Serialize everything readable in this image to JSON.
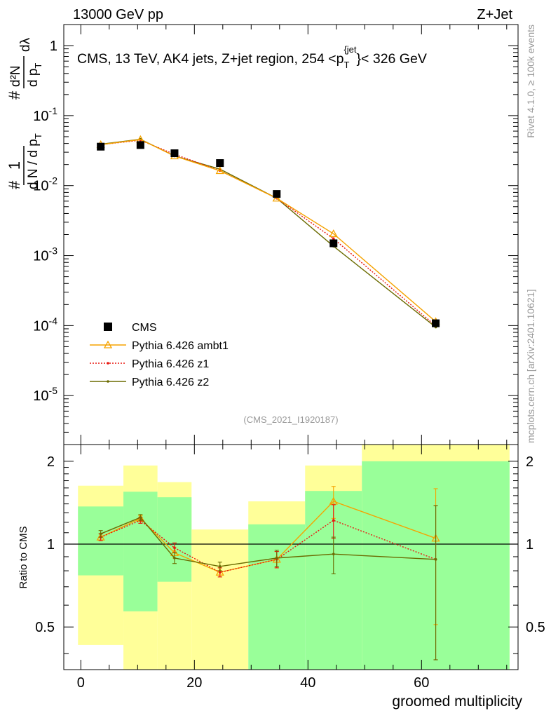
{
  "header": {
    "energy_label": "13000 GeV pp",
    "process_label": "Z+Jet"
  },
  "side_labels": {
    "rivet": "Rivet 4.1.0, ≥ 100k events",
    "mcplots": "mcplots.cern.ch [arXiv:2401.10621]"
  },
  "chart_data": {
    "type": "line",
    "title": "CMS, 13 TeV, AK4 jets, Z+jet region, 254 <p_T^{jet}< 326 GeV",
    "title_parts": {
      "main": "CMS, 13 TeV, AK4 jets, Z+jet region, 254 <p",
      "sub": "T",
      "sup": "{jet",
      "sup_close": "}",
      "tail": "< 326 GeV"
    },
    "analysis_id": "(CMS_2021_I1920187)",
    "xlabel": "groomed multiplicity",
    "ylabel": "1/N dN/dp_T dλ",
    "ylabel_parts": {
      "one": "1",
      "denominator": "d N / d p",
      "sub": "T",
      "numerator_d2N": "d²N",
      "numerator_bottom": "d p",
      "numerator_sub": "T",
      "dlambda": "dλ",
      "hash": "#"
    },
    "ratio_ylabel": "Ratio to CMS",
    "xlim": [
      -3,
      77
    ],
    "ylim": [
      2e-06,
      2
    ],
    "ratio_ylim": [
      0.35,
      2.3
    ],
    "x_ticks": [
      0,
      20,
      40,
      60
    ],
    "x_tick_labels": [
      "0",
      "20",
      "40",
      "60"
    ],
    "y_ticks": [
      1e-05,
      0.0001,
      0.001,
      0.01,
      0.1,
      1
    ],
    "y_tick_labels": [
      {
        "base": "10",
        "exp": "-5"
      },
      {
        "base": "10",
        "exp": "-4"
      },
      {
        "base": "10",
        "exp": "-3"
      },
      {
        "base": "10",
        "exp": "-2"
      },
      {
        "base": "10",
        "exp": "-1"
      },
      {
        "base": "1",
        "exp": ""
      }
    ],
    "ratio_ticks": [
      0.5,
      1,
      2
    ],
    "ratio_tick_labels": [
      "0.5",
      "1",
      "2"
    ],
    "bins": [
      {
        "lo": -0.5,
        "hi": 7.5
      },
      {
        "lo": 7.5,
        "hi": 13.5
      },
      {
        "lo": 13.5,
        "hi": 19.5
      },
      {
        "lo": 19.5,
        "hi": 29.5
      },
      {
        "lo": 29.5,
        "hi": 39.5
      },
      {
        "lo": 39.5,
        "hi": 49.5
      },
      {
        "lo": 49.5,
        "hi": 75.5
      }
    ],
    "x": [
      3.5,
      10.5,
      16.5,
      24.5,
      34.5,
      44.5,
      62.5
    ],
    "band_yellow": [
      [
        0.43,
        1.63
      ],
      [
        0.3,
        1.93
      ],
      [
        0.3,
        1.68
      ],
      [
        0.3,
        1.13
      ],
      [
        0.7,
        1.43
      ],
      [
        0.55,
        1.93
      ],
      [
        0.3,
        2.3
      ]
    ],
    "band_green": [
      [
        0.77,
        1.37
      ],
      [
        0.57,
        1.55
      ],
      [
        0.73,
        1.48
      ],
      [
        0.3,
        0.3
      ],
      [
        0.3,
        1.18
      ],
      [
        0.3,
        1.56
      ],
      [
        0.3,
        2.0
      ]
    ],
    "series": [
      {
        "name": "CMS",
        "marker": "square",
        "color": "#000000",
        "values": [
          0.036,
          0.038,
          0.029,
          0.021,
          0.0076,
          0.0015,
          0.000108
        ]
      },
      {
        "name": "Pythia 6.426 ambt1",
        "marker": "triangle",
        "style": "solid",
        "color": "#f5a300",
        "values": [
          0.0385,
          0.0455,
          0.0265,
          0.0163,
          0.0066,
          0.00205,
          0.000114
        ],
        "ratio": [
          1.06,
          1.24,
          0.93,
          0.79,
          0.88,
          1.43,
          1.05
        ],
        "ratio_err": [
          0.03,
          0.03,
          0.04,
          0.03,
          0.06,
          0.19,
          0.54
        ]
      },
      {
        "name": "Pythia 6.426 z1",
        "marker": "dot",
        "style": "dotted",
        "color": "#e8170f",
        "values": [
          0.0385,
          0.0445,
          0.028,
          0.0164,
          0.0066,
          0.00175,
          9.9e-05
        ],
        "ratio": [
          1.06,
          1.22,
          0.97,
          0.79,
          0.88,
          1.22,
          0.88
        ],
        "ratio_err": [
          0.03,
          0.03,
          0.04,
          0.03,
          0.06,
          0.17,
          0.5
        ]
      },
      {
        "name": "Pythia 6.426 z2",
        "marker": "dot",
        "style": "solid",
        "color": "#6b6b00",
        "values": [
          0.039,
          0.046,
          0.0265,
          0.0172,
          0.0066,
          0.00136,
          9.5e-05
        ],
        "ratio": [
          1.09,
          1.25,
          0.89,
          0.83,
          0.89,
          0.92,
          0.88
        ],
        "ratio_err": [
          0.03,
          0.03,
          0.04,
          0.03,
          0.06,
          0.14,
          0.5
        ]
      }
    ],
    "legend_position": "bottom-left",
    "colors": {
      "band_yellow": "#ffff99",
      "band_green": "#99ff99"
    }
  }
}
